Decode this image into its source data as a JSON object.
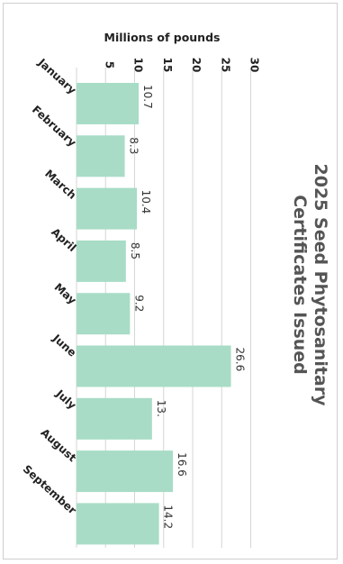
{
  "chart_data": {
    "type": "bar",
    "orientation": "horizontal",
    "title_lines": [
      "2025 Seed Phytosanitary",
      "Certificates Issued"
    ],
    "xlabel": "Millions of pounds",
    "ylabel": "",
    "categories": [
      "January",
      "February",
      "March",
      "April",
      "May",
      "June",
      "July",
      "August",
      "September"
    ],
    "values": [
      10.7,
      8.3,
      10.4,
      8.5,
      9.2,
      26.6,
      13.0,
      16.6,
      14.2
    ],
    "value_labels": [
      "10.7",
      "8.3",
      "10.4",
      "8.5",
      "9.2",
      "26.6",
      "13.",
      "16.6",
      "14.2"
    ],
    "ticks": [
      5,
      10,
      15,
      20,
      25,
      30
    ],
    "xlim": [
      0,
      30
    ],
    "grid": true,
    "bar_color": "#a8dcc6"
  }
}
